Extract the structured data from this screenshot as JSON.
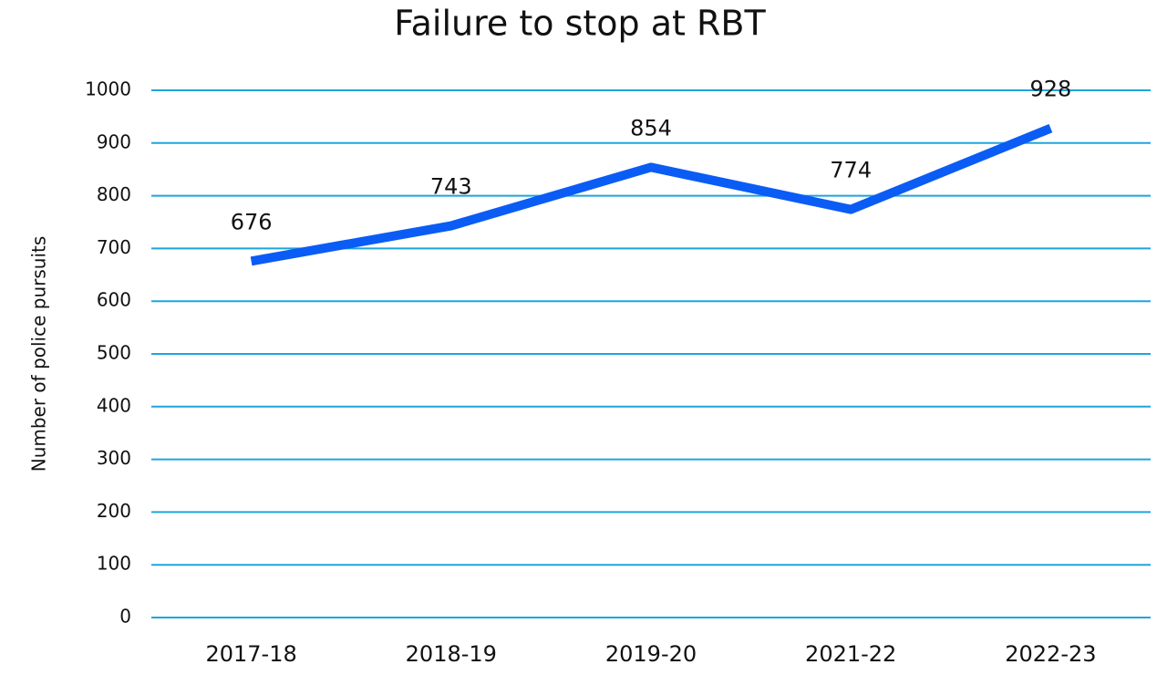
{
  "chart_data": {
    "type": "line",
    "title": "Failure to stop at RBT",
    "y_label": "Number of police pursuits",
    "categories": [
      "2017-18",
      "2018-19",
      "2019-20",
      "2021-22",
      "2022-23"
    ],
    "series": [
      {
        "name": "Failure to stop at RBT",
        "color": "#0a5cf5",
        "values": [
          676,
          743,
          854,
          774,
          928
        ]
      }
    ],
    "ylim": [
      0,
      1000
    ],
    "yticks": [
      0,
      100,
      200,
      300,
      400,
      500,
      600,
      700,
      800,
      900,
      1000
    ],
    "grid": true,
    "grid_color": "#1ea5dc"
  }
}
